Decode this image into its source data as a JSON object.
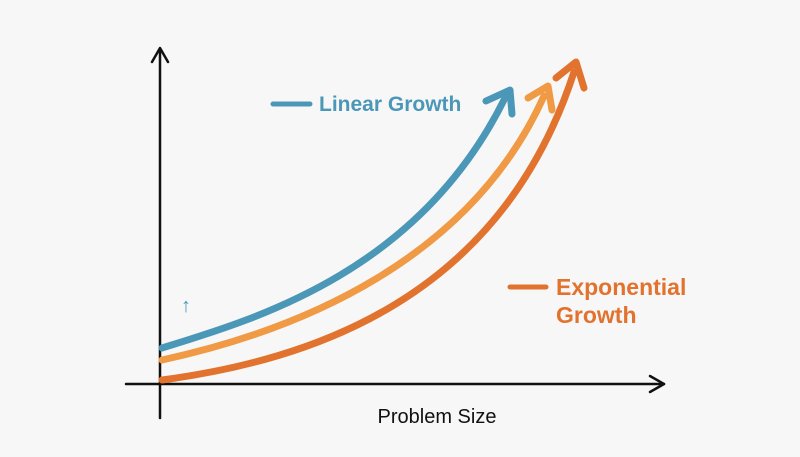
{
  "colors": {
    "background": "#f7f7f7",
    "axis": "#111111",
    "linear": "#4b97b8",
    "middle": "#f09a45",
    "exponential": "#e2732e"
  },
  "legend": {
    "linear_label": "Linear Growth",
    "exponential_label_line1": "Exponential",
    "exponential_label_line2": "Growth"
  },
  "axes": {
    "x_label": "Problem Size",
    "y_marker": "↑"
  },
  "icons": {
    "y_axis_arrow": "arrow-up-icon",
    "x_axis_arrow": "arrow-right-icon"
  }
}
